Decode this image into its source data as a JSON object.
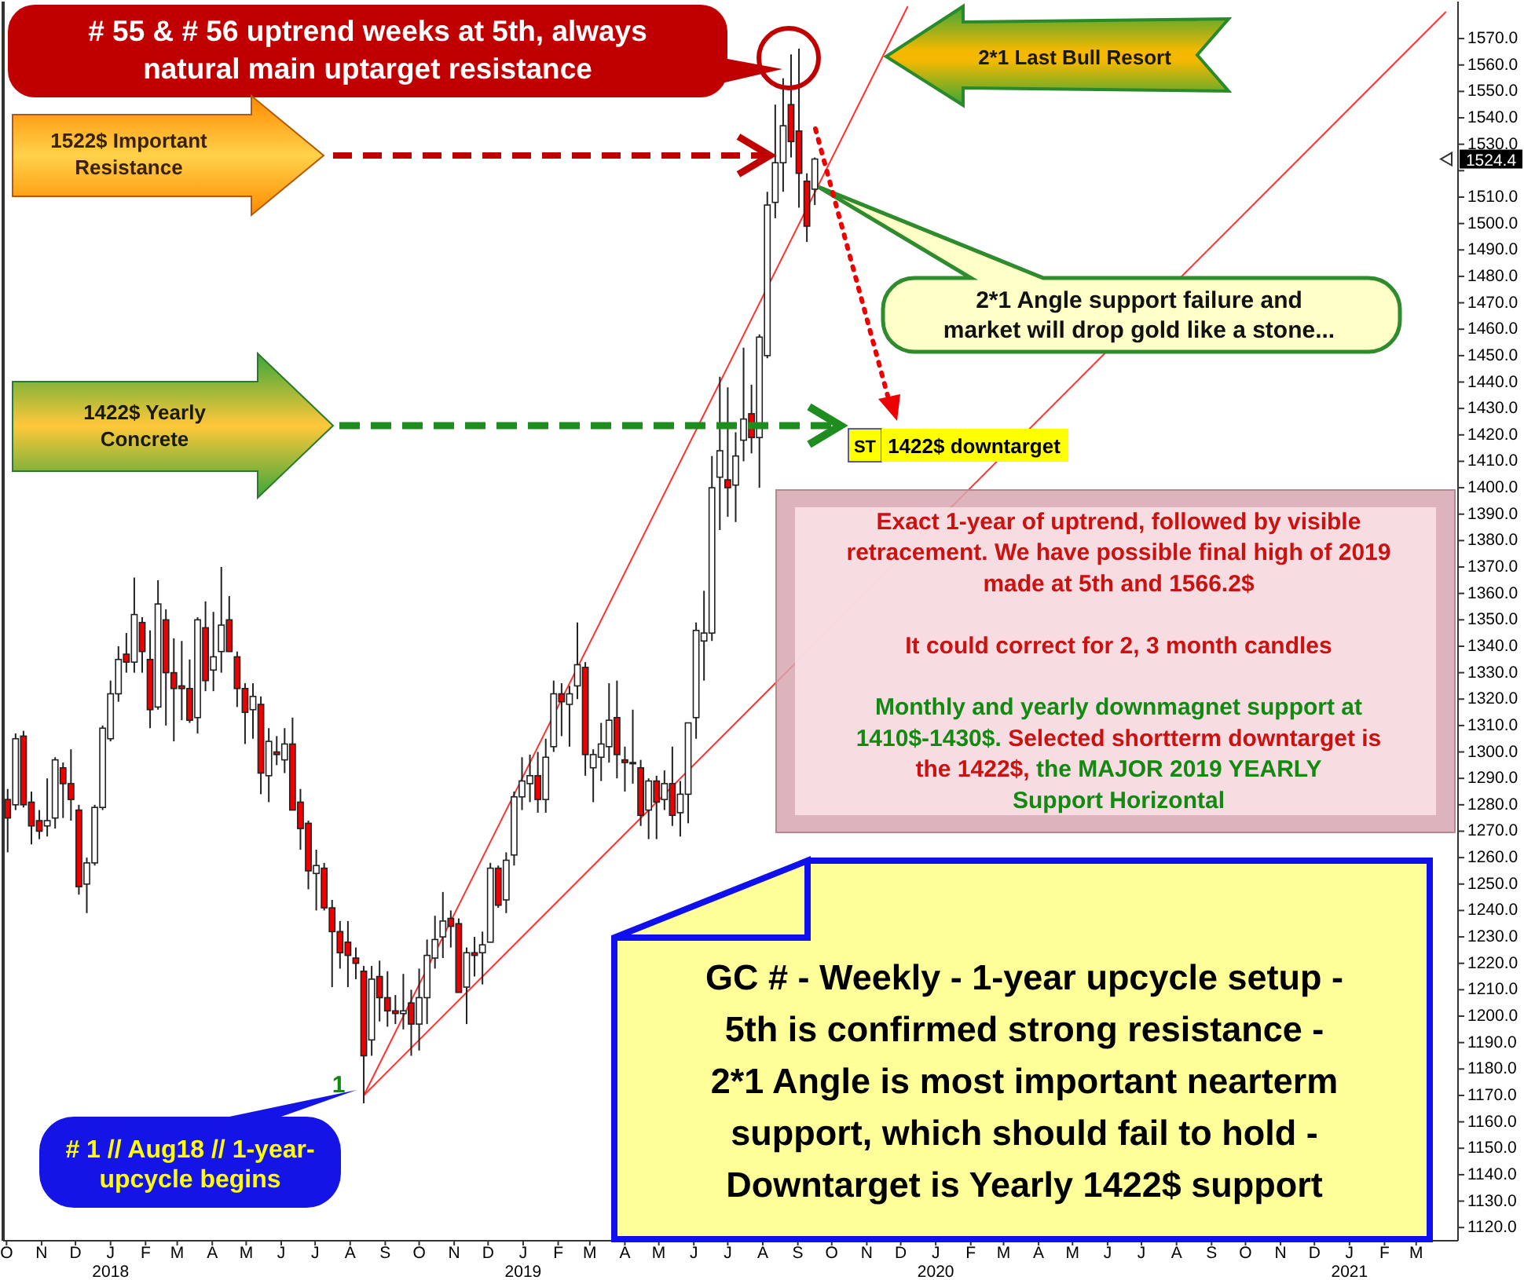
{
  "chart_data": {
    "type": "candlestick",
    "x": [
      "2017-10-02",
      "2017-10-09",
      "2017-10-16",
      "2017-10-23",
      "2017-10-30",
      "2017-11-06",
      "2017-11-13",
      "2017-11-20",
      "2017-11-27",
      "2017-12-04",
      "2017-12-11",
      "2017-12-18",
      "2017-12-25",
      "2018-01-01",
      "2018-01-08",
      "2018-01-15",
      "2018-01-22",
      "2018-01-29",
      "2018-02-05",
      "2018-02-12",
      "2018-02-19",
      "2018-02-26",
      "2018-03-05",
      "2018-03-12",
      "2018-03-19",
      "2018-03-26",
      "2018-04-02",
      "2018-04-09",
      "2018-04-16",
      "2018-04-23",
      "2018-04-30",
      "2018-05-07",
      "2018-05-14",
      "2018-05-21",
      "2018-05-28",
      "2018-06-04",
      "2018-06-11",
      "2018-06-18",
      "2018-06-25",
      "2018-07-02",
      "2018-07-09",
      "2018-07-16",
      "2018-07-23",
      "2018-07-30",
      "2018-08-06",
      "2018-08-13",
      "2018-08-20",
      "2018-08-27",
      "2018-09-03",
      "2018-09-10",
      "2018-09-17",
      "2018-09-24",
      "2018-10-01",
      "2018-10-08",
      "2018-10-15",
      "2018-10-22",
      "2018-10-29",
      "2018-11-05",
      "2018-11-12",
      "2018-11-19",
      "2018-11-26",
      "2018-12-03",
      "2018-12-10",
      "2018-12-17",
      "2018-12-24",
      "2018-12-31",
      "2019-01-07",
      "2019-01-14",
      "2019-01-21",
      "2019-01-28",
      "2019-02-04",
      "2019-02-11",
      "2019-02-18",
      "2019-02-25",
      "2019-03-04",
      "2019-03-11",
      "2019-03-18",
      "2019-03-25",
      "2019-04-01",
      "2019-04-08",
      "2019-04-15",
      "2019-04-22",
      "2019-04-29",
      "2019-05-06",
      "2019-05-13",
      "2019-05-20",
      "2019-05-27",
      "2019-06-03",
      "2019-06-10",
      "2019-06-17",
      "2019-06-24",
      "2019-07-01",
      "2019-07-08",
      "2019-07-15",
      "2019-07-22",
      "2019-07-29",
      "2019-08-05",
      "2019-08-12",
      "2019-08-19",
      "2019-08-26",
      "2019-09-02",
      "2019-09-09",
      "2019-09-16"
    ],
    "ohlc": [
      [
        1282,
        1286,
        1262,
        1275
      ],
      [
        1280,
        1307,
        1278,
        1305
      ],
      [
        1306,
        1308,
        1279,
        1280
      ],
      [
        1281,
        1285,
        1265,
        1272
      ],
      [
        1274,
        1278,
        1267,
        1270
      ],
      [
        1272,
        1290,
        1268,
        1274
      ],
      [
        1275,
        1298,
        1271,
        1297
      ],
      [
        1294,
        1296,
        1275,
        1288
      ],
      [
        1288,
        1301,
        1274,
        1282
      ],
      [
        1278,
        1280,
        1246,
        1249
      ],
      [
        1250,
        1260,
        1239,
        1258
      ],
      [
        1258,
        1280,
        1257,
        1279
      ],
      [
        1279,
        1310,
        1278,
        1309
      ],
      [
        1305,
        1327,
        1304,
        1322
      ],
      [
        1322,
        1340,
        1319,
        1335
      ],
      [
        1337,
        1345,
        1330,
        1334
      ],
      [
        1334,
        1366,
        1330,
        1352
      ],
      [
        1349,
        1351,
        1330,
        1338
      ],
      [
        1335,
        1346,
        1309,
        1316
      ],
      [
        1317,
        1365,
        1316,
        1356
      ],
      [
        1350,
        1354,
        1310,
        1330
      ],
      [
        1330,
        1343,
        1304,
        1324
      ],
      [
        1325,
        1342,
        1312,
        1324
      ],
      [
        1324,
        1335,
        1311,
        1312
      ],
      [
        1313,
        1351,
        1307,
        1350
      ],
      [
        1347,
        1357,
        1323,
        1327
      ],
      [
        1331,
        1353,
        1323,
        1336
      ],
      [
        1338,
        1370,
        1330,
        1348
      ],
      [
        1350,
        1359,
        1338,
        1338
      ],
      [
        1336,
        1338,
        1317,
        1324
      ],
      [
        1324,
        1326,
        1303,
        1315
      ],
      [
        1316,
        1326,
        1305,
        1321
      ],
      [
        1318,
        1321,
        1284,
        1292
      ],
      [
        1291,
        1309,
        1281,
        1304
      ],
      [
        1300,
        1306,
        1295,
        1299
      ],
      [
        1297,
        1309,
        1292,
        1303
      ],
      [
        1303,
        1313,
        1278,
        1278
      ],
      [
        1281,
        1286,
        1263,
        1271
      ],
      [
        1273,
        1274,
        1248,
        1255
      ],
      [
        1254,
        1263,
        1240,
        1257
      ],
      [
        1256,
        1258,
        1240,
        1241
      ],
      [
        1241,
        1244,
        1211,
        1232
      ],
      [
        1232,
        1236,
        1218,
        1224
      ],
      [
        1228,
        1236,
        1211,
        1223
      ],
      [
        1222,
        1226,
        1214,
        1220
      ],
      [
        1217,
        1219,
        1167,
        1185
      ],
      [
        1191,
        1219,
        1185,
        1214
      ],
      [
        1215,
        1221,
        1198,
        1207
      ],
      [
        1207,
        1217,
        1196,
        1202
      ],
      [
        1202,
        1208,
        1197,
        1201
      ],
      [
        1201,
        1216,
        1195,
        1202
      ],
      [
        1205,
        1210,
        1185,
        1197
      ],
      [
        1197,
        1218,
        1187,
        1207
      ],
      [
        1207,
        1229,
        1197,
        1223
      ],
      [
        1222,
        1238,
        1218,
        1229
      ],
      [
        1230,
        1247,
        1222,
        1236
      ],
      [
        1237,
        1240,
        1226,
        1234
      ],
      [
        1235,
        1237,
        1209,
        1209
      ],
      [
        1211,
        1226,
        1197,
        1224
      ],
      [
        1224,
        1230,
        1215,
        1223
      ],
      [
        1224,
        1232,
        1212,
        1227
      ],
      [
        1228,
        1258,
        1228,
        1256
      ],
      [
        1256,
        1257,
        1241,
        1242
      ],
      [
        1244,
        1262,
        1239,
        1259
      ],
      [
        1261,
        1285,
        1257,
        1283
      ],
      [
        1283,
        1298,
        1278,
        1289
      ],
      [
        1288,
        1299,
        1281,
        1291
      ],
      [
        1291,
        1300,
        1277,
        1282
      ],
      [
        1282,
        1305,
        1277,
        1298
      ],
      [
        1302,
        1327,
        1300,
        1322
      ],
      [
        1322,
        1326,
        1306,
        1319
      ],
      [
        1318,
        1325,
        1302,
        1322
      ],
      [
        1325,
        1349,
        1320,
        1333
      ],
      [
        1332,
        1334,
        1291,
        1299
      ],
      [
        1294,
        1301,
        1281,
        1299
      ],
      [
        1298,
        1311,
        1289,
        1303
      ],
      [
        1302,
        1326,
        1296,
        1312
      ],
      [
        1313,
        1327,
        1290,
        1299
      ],
      [
        1297,
        1302,
        1285,
        1296
      ],
      [
        1296,
        1316,
        1288,
        1296
      ],
      [
        1294,
        1297,
        1272,
        1276
      ],
      [
        1278,
        1290,
        1267,
        1289
      ],
      [
        1289,
        1291,
        1267,
        1281
      ],
      [
        1282,
        1293,
        1278,
        1288
      ],
      [
        1288,
        1302,
        1272,
        1276
      ],
      [
        1277,
        1289,
        1268,
        1284
      ],
      [
        1284,
        1311,
        1273,
        1311
      ],
      [
        1313,
        1349,
        1305,
        1346
      ],
      [
        1342,
        1361,
        1327,
        1345
      ],
      [
        1345,
        1412,
        1342,
        1400
      ],
      [
        1404,
        1442,
        1384,
        1414
      ],
      [
        1403,
        1438,
        1389,
        1400
      ],
      [
        1401,
        1421,
        1387,
        1412
      ],
      [
        1418,
        1453,
        1410,
        1426
      ],
      [
        1428,
        1439,
        1413,
        1419
      ],
      [
        1419,
        1458,
        1400,
        1457
      ],
      [
        1450,
        1512,
        1449,
        1507
      ],
      [
        1508,
        1545,
        1502,
        1523
      ],
      [
        1523,
        1555,
        1512,
        1537
      ],
      [
        1545,
        1564,
        1525,
        1531
      ],
      [
        1535,
        1566.2,
        1506,
        1519
      ],
      [
        1516,
        1519,
        1493,
        1499
      ],
      [
        1513,
        1525,
        1507,
        1524.4
      ]
    ],
    "series": [
      {
        "type": "line",
        "color": "#ff3333",
        "x": [
          "2018-08-13",
          "2019-12-07"
        ],
        "values": [
          1170,
          1582
        ]
      },
      {
        "type": "line",
        "color": "#ff3333",
        "x": [
          "2018-08-13",
          "2021-03-27"
        ],
        "values": [
          1170,
          1580
        ]
      }
    ],
    "xlim": [
      "2017-09-28",
      "2021-04-07"
    ],
    "ylim": [
      1115,
      1584
    ],
    "xticks": [
      {
        "value": "2017-10",
        "label": "O"
      },
      {
        "value": "2017-11",
        "label": "N"
      },
      {
        "value": "2017-12",
        "label": "D"
      },
      {
        "value": "2018-01",
        "label": "J\n2018"
      },
      {
        "value": "2018-02",
        "label": "F"
      },
      {
        "value": "2018-03",
        "label": "M"
      },
      {
        "value": "2018-04",
        "label": "A"
      },
      {
        "value": "2018-05",
        "label": "M"
      },
      {
        "value": "2018-06",
        "label": "J"
      },
      {
        "value": "2018-07",
        "label": "J"
      },
      {
        "value": "2018-08",
        "label": "A"
      },
      {
        "value": "2018-09",
        "label": "S"
      },
      {
        "value": "2018-10",
        "label": "O"
      },
      {
        "value": "2018-11",
        "label": "N"
      },
      {
        "value": "2018-12",
        "label": "D"
      },
      {
        "value": "2019-01",
        "label": "J\n2019"
      },
      {
        "value": "2019-02",
        "label": "F"
      },
      {
        "value": "2019-03",
        "label": "M"
      },
      {
        "value": "2019-04",
        "label": "A"
      },
      {
        "value": "2019-05",
        "label": "M"
      },
      {
        "value": "2019-06",
        "label": "J"
      },
      {
        "value": "2019-07",
        "label": "J"
      },
      {
        "value": "2019-08",
        "label": "A"
      },
      {
        "value": "2019-09",
        "label": "S"
      },
      {
        "value": "2019-10",
        "label": "O"
      },
      {
        "value": "2019-11",
        "label": "N"
      },
      {
        "value": "2019-12",
        "label": "D"
      },
      {
        "value": "2020-01",
        "label": "J\n2020"
      },
      {
        "value": "2020-02",
        "label": "F"
      },
      {
        "value": "2020-03",
        "label": "M"
      },
      {
        "value": "2020-04",
        "label": "A"
      },
      {
        "value": "2020-05",
        "label": "M"
      },
      {
        "value": "2020-06",
        "label": "J"
      },
      {
        "value": "2020-07",
        "label": "J"
      },
      {
        "value": "2020-08",
        "label": "A"
      },
      {
        "value": "2020-09",
        "label": "S"
      },
      {
        "value": "2020-10",
        "label": "O"
      },
      {
        "value": "2020-11",
        "label": "N"
      },
      {
        "value": "2020-12",
        "label": "D"
      },
      {
        "value": "2021-01",
        "label": "J\n2021"
      },
      {
        "value": "2021-02",
        "label": "F"
      },
      {
        "value": "2021-03",
        "label": "M"
      }
    ],
    "yticks": [
      {
        "value": 1120,
        "label": "1120.0"
      },
      {
        "value": 1130,
        "label": "1130.0"
      },
      {
        "value": 1140,
        "label": "1140.0"
      },
      {
        "value": 1150,
        "label": "1150.0"
      },
      {
        "value": 1160,
        "label": "1160.0"
      },
      {
        "value": 1170,
        "label": "1170.0"
      },
      {
        "value": 1180,
        "label": "1180.0"
      },
      {
        "value": 1190,
        "label": "1190.0"
      },
      {
        "value": 1200,
        "label": "1200.0"
      },
      {
        "value": 1210,
        "label": "1210.0"
      },
      {
        "value": 1220,
        "label": "1220.0"
      },
      {
        "value": 1230,
        "label": "1230.0"
      },
      {
        "value": 1240,
        "label": "1240.0"
      },
      {
        "value": 1250,
        "label": "1250.0"
      },
      {
        "value": 1260,
        "label": "1260.0"
      },
      {
        "value": 1270,
        "label": "1270.0"
      },
      {
        "value": 1280,
        "label": "1280.0"
      },
      {
        "value": 1290,
        "label": "1290.0"
      },
      {
        "value": 1300,
        "label": "1300.0"
      },
      {
        "value": 1310,
        "label": "1310.0"
      },
      {
        "value": 1320,
        "label": "1320.0"
      },
      {
        "value": 1330,
        "label": "1330.0"
      },
      {
        "value": 1340,
        "label": "1340.0"
      },
      {
        "value": 1350,
        "label": "1350.0"
      },
      {
        "value": 1360,
        "label": "1360.0"
      },
      {
        "value": 1370,
        "label": "1370.0"
      },
      {
        "value": 1380,
        "label": "1380.0"
      },
      {
        "value": 1390,
        "label": "1390.0"
      },
      {
        "value": 1400,
        "label": "1400.0"
      },
      {
        "value": 1410,
        "label": "1410.0"
      },
      {
        "value": 1420,
        "label": "1420.0"
      },
      {
        "value": 1430,
        "label": "1430.0"
      },
      {
        "value": 1440,
        "label": "1440.0"
      },
      {
        "value": 1450,
        "label": "1450.0"
      },
      {
        "value": 1460,
        "label": "1460.0"
      },
      {
        "value": 1470,
        "label": "1470.0"
      },
      {
        "value": 1480,
        "label": "1480.0"
      },
      {
        "value": 1490,
        "label": "1490.0"
      },
      {
        "value": 1500,
        "label": "1500.0"
      },
      {
        "value": 1510,
        "label": "1510.0"
      },
      {
        "value": 1520,
        "label": null
      },
      {
        "value": 1530,
        "label": "1530.0"
      },
      {
        "value": 1540,
        "label": "1540.0"
      },
      {
        "value": 1550,
        "label": "1550.0"
      },
      {
        "value": 1560,
        "label": "1560.0"
      },
      {
        "value": 1570,
        "label": "1570.0"
      }
    ],
    "annotations": [
      "# 55 & # 56 uptrend weeks at 5th, always\nnatural main uptarget resistance",
      "1522$ Important\nResistance",
      "2*1 Last Bull Resort",
      "2*1 Angle support failure and\nmarket will drop gold like a stone...",
      "1422$ Yearly\nConcrete",
      "ST",
      "1422$ downtarget",
      "Exact 1-year of uptrend, followed by visible\nretracement. We have possible final high of 2019\nmade at 5th and 1566.2$",
      "It could correct for 2, 3 month candles",
      "Monthly and yearly downmagnet support at\n1410$-1430$. Selected shortterm downtarget is\nthe 1422$, the MAJOR 2019 YEARLY\nSupport Horizontal",
      "GC # - Weekly - 1-year upcycle setup -\n5th is confirmed strong resistance -\n2*1 Angle is most important nearterm\nsupport, which should fail to hold -\nDowntarget is Yearly 1422$ support",
      "# 1 // Aug18 // 1-year-\nupcycle begins",
      {
        "text": "1",
        "x": "2018-08-13",
        "y": 1170
      },
      {
        "text": "1524.4",
        "y": 1524.4
      }
    ]
  }
}
